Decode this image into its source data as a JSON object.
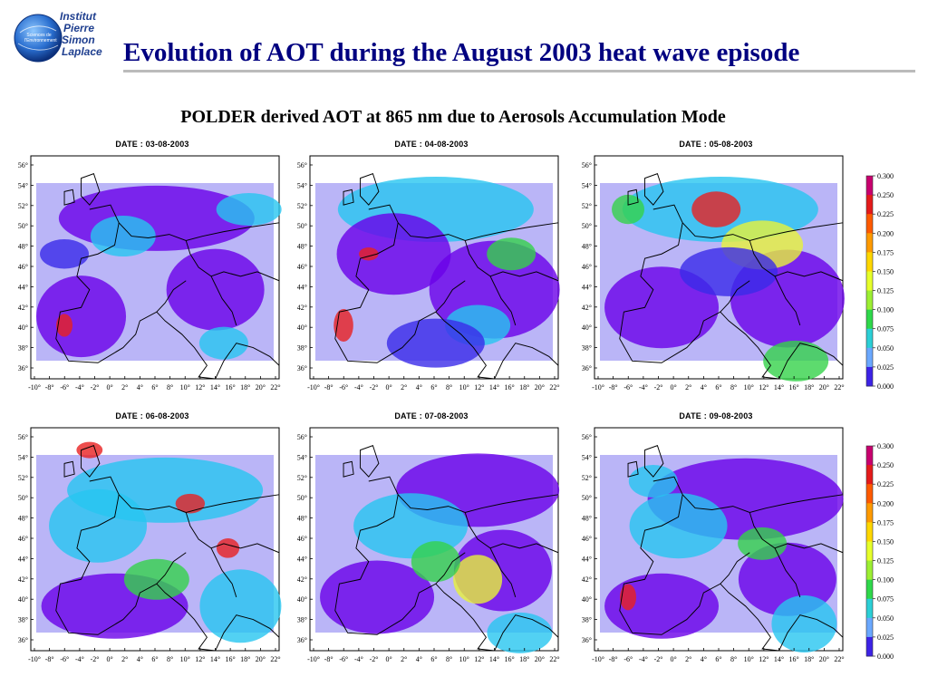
{
  "logo": {
    "line1": "Institut",
    "line2": "Pierre",
    "line3": "Simon",
    "line4": "Laplace",
    "small": "Sciences de l'Environnement"
  },
  "title": "Evolution of AOT during the August 2003 heat wave episode",
  "subtitle": "POLDER derived AOT at 865 nm due to Aerosols Accumulation Mode",
  "maps": [
    {
      "date": "DATE : 03-08-2003"
    },
    {
      "date": "DATE : 04-08-2003"
    },
    {
      "date": "DATE : 05-08-2003"
    },
    {
      "date": "DATE : 06-08-2003"
    },
    {
      "date": "DATE : 07-08-2003"
    },
    {
      "date": "DATE : 09-08-2003"
    }
  ],
  "lat_ticks": [
    "56°",
    "54°",
    "52°",
    "50°",
    "48°",
    "46°",
    "44°",
    "42°",
    "40°",
    "38°",
    "36°"
  ],
  "lon_ticks": [
    "-10°",
    "-8°",
    "-6°",
    "-4°",
    "-2°",
    "0°",
    "2°",
    "4°",
    "6°",
    "8°",
    "10°",
    "12°",
    "14°",
    "16°",
    "18°",
    "20°",
    "22°"
  ],
  "colorbar": {
    "labels": [
      "0.300",
      "0.250",
      "0.225",
      "0.200",
      "0.175",
      "0.150",
      "0.125",
      "0.100",
      "0.075",
      "0.050",
      "0.025",
      "0.000"
    ],
    "colors": [
      "#c8006e",
      "#e41a1a",
      "#ff5a00",
      "#ff9a00",
      "#ffd700",
      "#e6ff2a",
      "#9cef32",
      "#2ed84a",
      "#2bcfd6",
      "#6aa8ff",
      "#3c22e6",
      "#7a00e0"
    ]
  },
  "palette": {
    "low": "#6a00e8",
    "low2": "#3a2ae8",
    "mid": "#27c6f0",
    "mid2": "#3be0d6",
    "green": "#34d24a",
    "yellow": "#e8f23a",
    "orange": "#ff9a00",
    "red": "#e82020",
    "title": "#000080"
  }
}
